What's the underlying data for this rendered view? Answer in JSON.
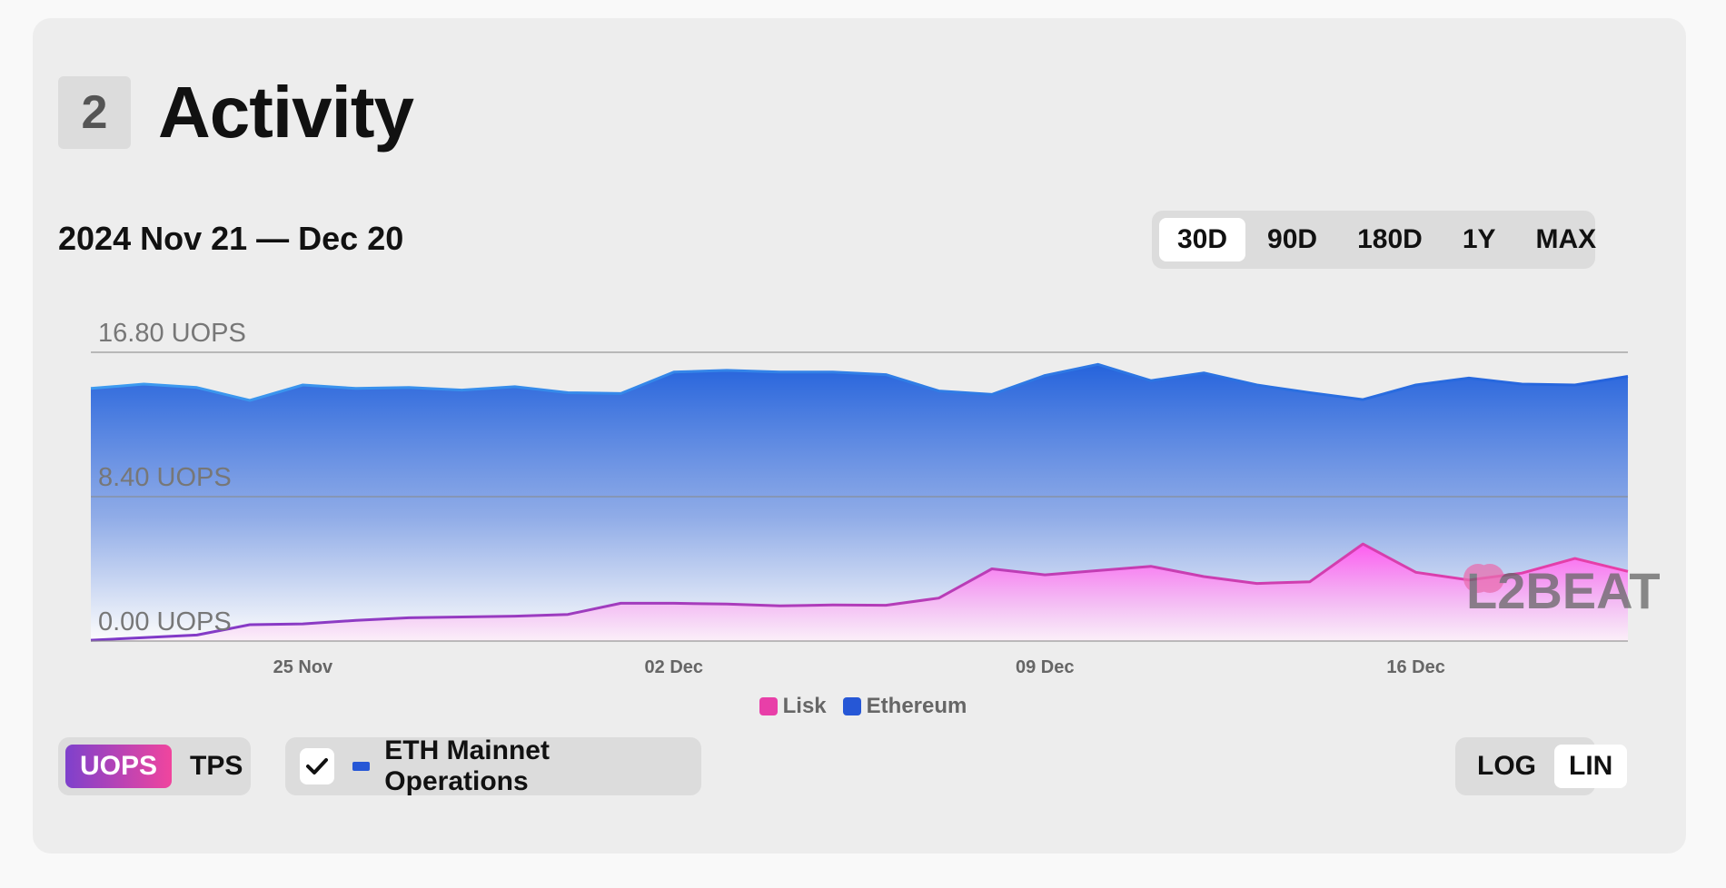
{
  "section": {
    "number": "2",
    "title": "Activity"
  },
  "date_range": "2024 Nov 21 — Dec 20",
  "range_options": [
    {
      "label": "30D",
      "active": true
    },
    {
      "label": "90D",
      "active": false
    },
    {
      "label": "180D",
      "active": false
    },
    {
      "label": "1Y",
      "active": false
    },
    {
      "label": "MAX",
      "active": false
    }
  ],
  "chart_data": {
    "type": "area",
    "x": [
      "2024-11-21",
      "2024-11-22",
      "2024-11-23",
      "2024-11-24",
      "2024-11-25",
      "2024-11-26",
      "2024-11-27",
      "2024-11-28",
      "2024-11-29",
      "2024-11-30",
      "2024-12-01",
      "2024-12-02",
      "2024-12-03",
      "2024-12-04",
      "2024-12-05",
      "2024-12-06",
      "2024-12-07",
      "2024-12-08",
      "2024-12-09",
      "2024-12-10",
      "2024-12-11",
      "2024-12-12",
      "2024-12-13",
      "2024-12-14",
      "2024-12-15",
      "2024-12-16",
      "2024-12-17",
      "2024-12-18",
      "2024-12-19",
      "2024-12-20"
    ],
    "x_ticks": [
      {
        "x": "2024-11-25",
        "label": "25 Nov"
      },
      {
        "x": "2024-12-02",
        "label": "02 Dec"
      },
      {
        "x": "2024-12-09",
        "label": "09 Dec"
      },
      {
        "x": "2024-12-16",
        "label": "16 Dec"
      }
    ],
    "y_ticks": [
      {
        "value": 0,
        "label": "0.00 UOPS"
      },
      {
        "value": 8.4,
        "label": "8.40 UOPS"
      },
      {
        "value": 16.8,
        "label": "16.80 UOPS"
      }
    ],
    "ylim": [
      0,
      16.8
    ],
    "scale": "linear",
    "grid": true,
    "legend_position": "bottom-center",
    "series": [
      {
        "name": "Ethereum",
        "color": "#2657d6",
        "values": [
          14.7,
          14.95,
          14.75,
          14.0,
          14.9,
          14.7,
          14.75,
          14.6,
          14.8,
          14.45,
          14.4,
          15.65,
          15.75,
          15.65,
          15.65,
          15.5,
          14.55,
          14.35,
          15.45,
          16.1,
          15.15,
          15.6,
          14.9,
          14.45,
          14.05,
          14.9,
          15.3,
          14.95,
          14.9,
          15.4
        ]
      },
      {
        "name": "Lisk",
        "color": "#e83fa8",
        "values": [
          0.05,
          0.2,
          0.35,
          0.95,
          1.0,
          1.2,
          1.35,
          1.4,
          1.45,
          1.55,
          2.2,
          2.2,
          2.15,
          2.05,
          2.1,
          2.08,
          2.5,
          4.2,
          3.85,
          4.1,
          4.35,
          3.75,
          3.35,
          3.45,
          5.65,
          4.0,
          3.55,
          3.95,
          4.8,
          4.05
        ]
      }
    ]
  },
  "legend": [
    {
      "label": "Lisk",
      "color": "#e83fa8"
    },
    {
      "label": "Ethereum",
      "color": "#2657d6"
    }
  ],
  "unit_options": [
    {
      "label": "UOPS",
      "active": true
    },
    {
      "label": "TPS",
      "active": false
    }
  ],
  "eth_toggle": {
    "label": "ETH Mainnet Operations",
    "checked": true,
    "color": "#2657d6"
  },
  "scale_options": [
    {
      "label": "LOG",
      "active": false
    },
    {
      "label": "LIN",
      "active": true
    }
  ],
  "watermark": "L2BEAT"
}
